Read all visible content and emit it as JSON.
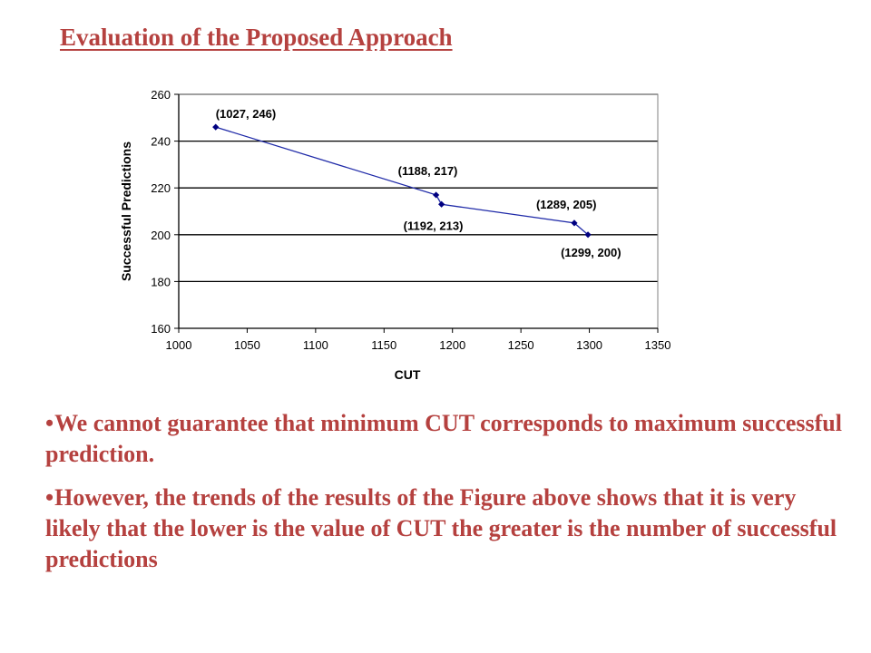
{
  "slide": {
    "title": "Evaluation of the Proposed Approach",
    "bullet_symbol": "•",
    "bullets": [
      "We cannot guarantee that minimum CUT corresponds to maximum successful prediction.",
      "However, the trends of the results of the Figure above shows that it is very likely that the lower is the value of CUT the greater is the number of successful predictions"
    ]
  },
  "chart_data": {
    "type": "line",
    "title": "",
    "xlabel": "CUT",
    "ylabel": "Successful Predictions",
    "xlim": [
      1000,
      1350
    ],
    "ylim": [
      160,
      260
    ],
    "x_ticks": [
      1000,
      1050,
      1100,
      1150,
      1200,
      1250,
      1300,
      1350
    ],
    "y_ticks": [
      160,
      180,
      200,
      220,
      240,
      260
    ],
    "grid": "horizontal",
    "legend": "none",
    "series": [
      {
        "color": "#1f2aa8",
        "points": [
          {
            "x": 1027,
            "y": 246,
            "label": "(1027, 246)"
          },
          {
            "x": 1188,
            "y": 217,
            "label": "(1188, 217)"
          },
          {
            "x": 1192,
            "y": 213,
            "label": "(1192, 213)"
          },
          {
            "x": 1289,
            "y": 205,
            "label": "(1289, 205)"
          },
          {
            "x": 1299,
            "y": 200,
            "label": "(1299, 200)"
          }
        ]
      }
    ]
  }
}
